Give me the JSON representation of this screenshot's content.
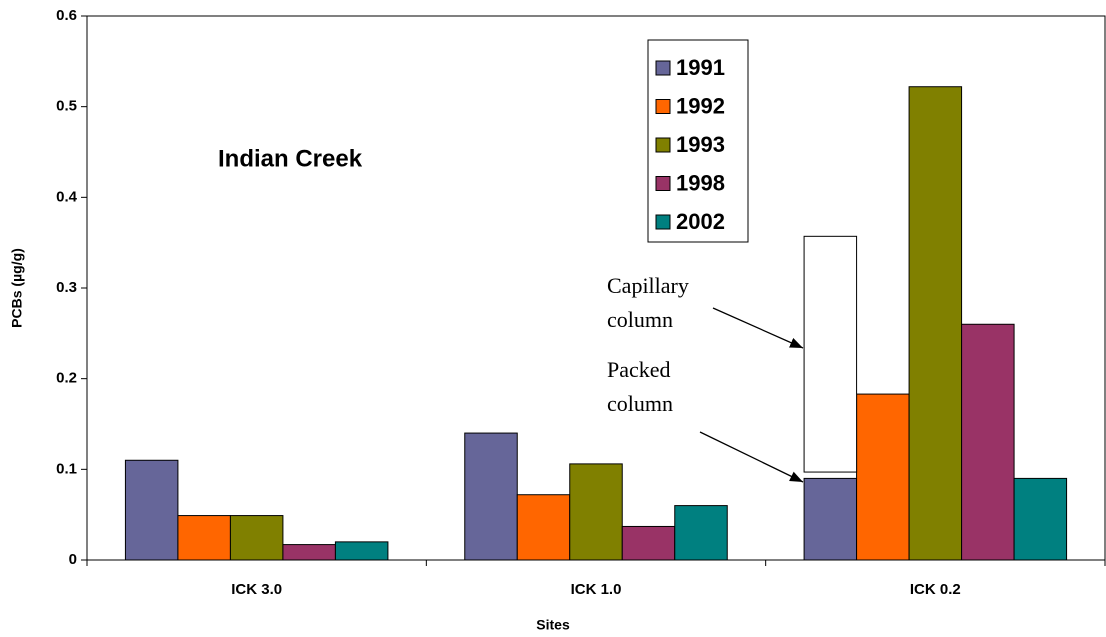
{
  "chart_data": {
    "type": "bar",
    "title": "Indian Creek",
    "xlabel": "Sites",
    "ylabel": "PCBs (µg/g)",
    "categories": [
      "ICK 3.0",
      "ICK 1.0",
      "ICK 0.2"
    ],
    "series": [
      {
        "name": "1991",
        "color": "#666699",
        "values": [
          0.11,
          0.14,
          0.09
        ]
      },
      {
        "name": "1992",
        "color": "#ff6600",
        "values": [
          0.049,
          0.072,
          0.183
        ]
      },
      {
        "name": "1993",
        "color": "#808000",
        "values": [
          0.049,
          0.106,
          0.522
        ]
      },
      {
        "name": "1998",
        "color": "#993366",
        "values": [
          0.017,
          0.037,
          0.26
        ]
      },
      {
        "name": "2002",
        "color": "#008080",
        "values": [
          0.02,
          0.06,
          0.09
        ]
      }
    ],
    "ylim": [
      0,
      0.6
    ],
    "yticks": [
      0,
      0.1,
      0.2,
      0.3,
      0.4,
      0.5,
      0.6
    ],
    "capillary_range": [
      0.097,
      0.357
    ],
    "annotations": [
      {
        "lines": [
          "Capillary",
          "column"
        ]
      },
      {
        "lines": [
          "Packed",
          "column"
        ]
      }
    ]
  }
}
